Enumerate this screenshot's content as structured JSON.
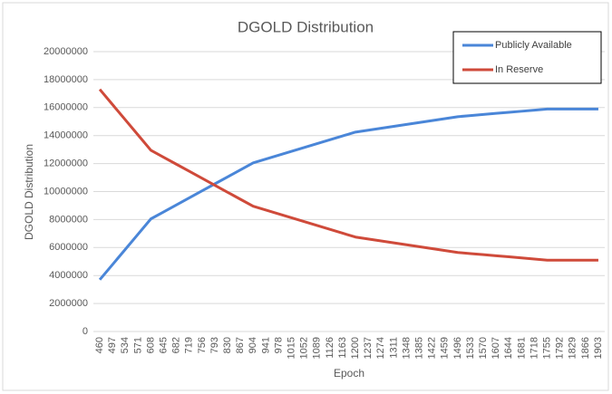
{
  "chart_data": {
    "type": "line",
    "title": "DGOLD Distribution",
    "xlabel": "Epoch",
    "ylabel": "DGOLD Distribution",
    "categories": [
      460,
      497,
      534,
      571,
      608,
      645,
      682,
      719,
      756,
      793,
      830,
      867,
      904,
      941,
      978,
      1015,
      1052,
      1089,
      1126,
      1163,
      1200,
      1237,
      1274,
      1311,
      1348,
      1385,
      1422,
      1459,
      1496,
      1533,
      1570,
      1607,
      1644,
      1681,
      1718,
      1755,
      1792,
      1829,
      1866,
      1903
    ],
    "series": [
      {
        "name": "Publicly Available",
        "color": "#4a86d8",
        "values": [
          3700000,
          4787500,
          5875000,
          6962500,
          8050000,
          8550000,
          9050000,
          9550000,
          10050000,
          10550000,
          11050000,
          11550000,
          12050000,
          12325000,
          12600000,
          12875000,
          13150000,
          13425000,
          13700000,
          13975000,
          14250000,
          14387500,
          14525000,
          14662500,
          14800000,
          14937500,
          15075000,
          15212500,
          15350000,
          15430000,
          15510000,
          15590000,
          15660000,
          15740000,
          15820000,
          15900000,
          15900000,
          15900000,
          15900000,
          15900000
        ]
      },
      {
        "name": "In Reserve",
        "color": "#cf4a3a",
        "values": [
          17300000,
          16212500,
          15125000,
          14037500,
          12950000,
          12450000,
          11950000,
          11450000,
          10950000,
          10450000,
          9950000,
          9450000,
          8950000,
          8675000,
          8400000,
          8125000,
          7850000,
          7575000,
          7300000,
          7025000,
          6750000,
          6612500,
          6475000,
          6337500,
          6200000,
          6062500,
          5925000,
          5787500,
          5650000,
          5570000,
          5490000,
          5410000,
          5340000,
          5260000,
          5180000,
          5100000,
          5100000,
          5100000,
          5100000,
          5100000
        ]
      }
    ],
    "ylim": [
      0,
      20000000
    ],
    "yticks": [
      0,
      2000000,
      4000000,
      6000000,
      8000000,
      10000000,
      12000000,
      14000000,
      16000000,
      18000000,
      20000000
    ],
    "grid": true,
    "legend": "upper right"
  }
}
